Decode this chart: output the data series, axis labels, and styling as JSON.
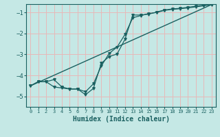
{
  "xlabel": "Humidex (Indice chaleur)",
  "bg_color": "#c5e8e5",
  "grid_color": "#e8b8b8",
  "line_color": "#1a6060",
  "xlim": [
    -0.5,
    23.5
  ],
  "ylim": [
    -5.5,
    -0.6
  ],
  "xticks": [
    0,
    1,
    2,
    3,
    4,
    5,
    6,
    7,
    8,
    9,
    10,
    11,
    12,
    13,
    14,
    15,
    16,
    17,
    18,
    19,
    20,
    21,
    22,
    23
  ],
  "yticks": [
    -5,
    -4,
    -3,
    -2,
    -1
  ],
  "series1_x": [
    0,
    1,
    2,
    3,
    4,
    5,
    6,
    7,
    8,
    9,
    10,
    11,
    12,
    13,
    14,
    15,
    16,
    17,
    18,
    19,
    20,
    21,
    22,
    23
  ],
  "series1_y": [
    -4.5,
    -4.3,
    -4.3,
    -4.2,
    -4.55,
    -4.65,
    -4.65,
    -4.78,
    -4.4,
    -3.55,
    -2.95,
    -2.65,
    -2.05,
    -1.25,
    -1.15,
    -1.05,
    -1.0,
    -0.9,
    -0.85,
    -0.82,
    -0.78,
    -0.73,
    -0.68,
    -0.62
  ],
  "series2_x": [
    0,
    1,
    2,
    3,
    4,
    5,
    6,
    7,
    8,
    9,
    10,
    11,
    12,
    13,
    14,
    15,
    16,
    17,
    18,
    19,
    20,
    21,
    22,
    23
  ],
  "series2_y": [
    -4.5,
    -4.3,
    -4.3,
    -4.55,
    -4.6,
    -4.65,
    -4.65,
    -4.92,
    -4.62,
    -3.42,
    -3.1,
    -2.98,
    -2.28,
    -1.12,
    -1.12,
    -1.08,
    -0.98,
    -0.88,
    -0.83,
    -0.8,
    -0.75,
    -0.7,
    -0.65,
    -0.58
  ],
  "series3_x": [
    0,
    23
  ],
  "series3_y": [
    -4.5,
    -0.62
  ]
}
